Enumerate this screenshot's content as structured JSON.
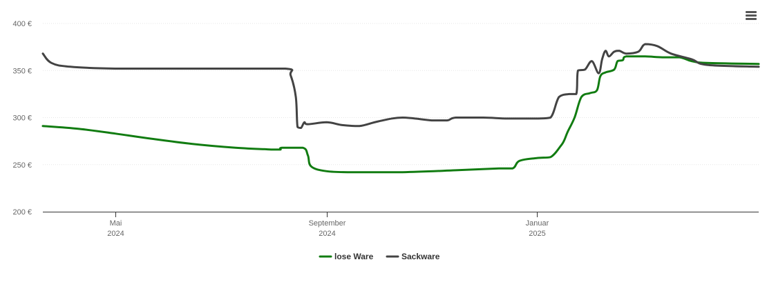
{
  "menu": {
    "icon": "hamburger-menu-icon"
  },
  "chart_data": {
    "type": "line",
    "title": "",
    "xlabel": "",
    "ylabel": "",
    "ylim": [
      200,
      400
    ],
    "yticks": [
      {
        "value": 200,
        "label": "200 €"
      },
      {
        "value": 250,
        "label": "250 €"
      },
      {
        "value": 300,
        "label": "300 €"
      },
      {
        "value": 350,
        "label": "350 €"
      },
      {
        "value": 400,
        "label": "400 €"
      }
    ],
    "xlim": [
      "2024-03-20",
      "2025-05-10"
    ],
    "xticks": [
      {
        "date": "2024-05-01",
        "label": "Mai",
        "sublabel": "2024"
      },
      {
        "date": "2024-09-01",
        "label": "September",
        "sublabel": "2024"
      },
      {
        "date": "2025-01-01",
        "label": "Januar",
        "sublabel": "2025"
      }
    ],
    "grid": true,
    "legend_position": "bottom-center",
    "series": [
      {
        "name": "lose Ware",
        "color": "#117c11",
        "points": [
          [
            "2024-03-20",
            291
          ],
          [
            "2024-04-10",
            288
          ],
          [
            "2024-05-01",
            283
          ],
          [
            "2024-05-20",
            278
          ],
          [
            "2024-06-15",
            272
          ],
          [
            "2024-07-10",
            268
          ],
          [
            "2024-08-01",
            266
          ],
          [
            "2024-08-05",
            266
          ],
          [
            "2024-08-06",
            268
          ],
          [
            "2024-08-18",
            268
          ],
          [
            "2024-08-21",
            260
          ],
          [
            "2024-08-23",
            248
          ],
          [
            "2024-09-01",
            243
          ],
          [
            "2024-09-15",
            242
          ],
          [
            "2024-10-15",
            242
          ],
          [
            "2024-11-15",
            244
          ],
          [
            "2024-12-10",
            246
          ],
          [
            "2024-12-18",
            246
          ],
          [
            "2024-12-22",
            254
          ],
          [
            "2025-01-01",
            257
          ],
          [
            "2025-01-09",
            258
          ],
          [
            "2025-01-15",
            270
          ],
          [
            "2025-01-17",
            276
          ],
          [
            "2025-01-19",
            285
          ],
          [
            "2025-01-23",
            300
          ],
          [
            "2025-01-27",
            322
          ],
          [
            "2025-02-01",
            326
          ],
          [
            "2025-02-05",
            329
          ],
          [
            "2025-02-07",
            344
          ],
          [
            "2025-02-10",
            348
          ],
          [
            "2025-02-15",
            351
          ],
          [
            "2025-02-17",
            360
          ],
          [
            "2025-02-20",
            361
          ],
          [
            "2025-02-22",
            365
          ],
          [
            "2025-03-05",
            365
          ],
          [
            "2025-03-15",
            364
          ],
          [
            "2025-03-25",
            364
          ],
          [
            "2025-04-01",
            360
          ],
          [
            "2025-04-10",
            358
          ]
        ]
      },
      {
        "name": "Sackware",
        "color": "#434343",
        "points": [
          [
            "2024-03-20",
            368
          ],
          [
            "2024-03-25",
            358
          ],
          [
            "2024-04-05",
            354
          ],
          [
            "2024-05-01",
            352
          ],
          [
            "2024-06-01",
            352
          ],
          [
            "2024-07-01",
            352
          ],
          [
            "2024-08-08",
            352
          ],
          [
            "2024-08-11",
            345
          ],
          [
            "2024-08-14",
            322
          ],
          [
            "2024-08-15",
            290
          ],
          [
            "2024-08-17",
            289
          ],
          [
            "2024-08-19",
            295
          ],
          [
            "2024-08-21",
            293
          ],
          [
            "2024-09-01",
            295
          ],
          [
            "2024-09-10",
            292
          ],
          [
            "2024-09-20",
            291
          ],
          [
            "2024-10-01",
            296
          ],
          [
            "2024-10-15",
            300
          ],
          [
            "2024-11-01",
            297
          ],
          [
            "2024-11-10",
            297
          ],
          [
            "2024-11-15",
            300
          ],
          [
            "2024-12-01",
            300
          ],
          [
            "2024-12-15",
            299
          ],
          [
            "2025-01-01",
            299
          ],
          [
            "2025-01-09",
            300
          ],
          [
            "2025-01-14",
            322
          ],
          [
            "2025-01-20",
            325
          ],
          [
            "2025-01-24",
            325
          ],
          [
            "2025-01-25",
            350
          ],
          [
            "2025-01-29",
            351
          ],
          [
            "2025-02-02",
            360
          ],
          [
            "2025-02-06",
            347
          ],
          [
            "2025-02-08",
            362
          ],
          [
            "2025-02-10",
            371
          ],
          [
            "2025-02-12",
            365
          ],
          [
            "2025-02-15",
            370
          ],
          [
            "2025-02-18",
            371
          ],
          [
            "2025-02-22",
            368
          ],
          [
            "2025-03-01",
            370
          ],
          [
            "2025-03-05",
            378
          ],
          [
            "2025-03-12",
            376
          ],
          [
            "2025-03-20",
            368
          ],
          [
            "2025-04-01",
            362
          ],
          [
            "2025-04-10",
            356
          ]
        ]
      }
    ]
  }
}
